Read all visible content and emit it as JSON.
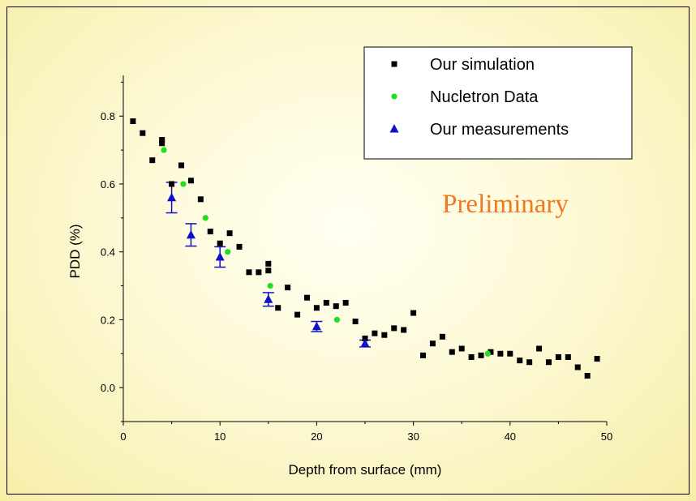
{
  "chart_data": {
    "type": "scatter",
    "title": "",
    "xlabel": "Depth from surface (mm)",
    "ylabel": "PDD (%)",
    "xlim": [
      0,
      50
    ],
    "ylim": [
      -0.1,
      0.92
    ],
    "x_ticks": [
      0,
      10,
      20,
      30,
      40,
      50
    ],
    "y_ticks": [
      0.0,
      0.2,
      0.4,
      0.6,
      0.8
    ],
    "x_tick_labels": [
      "0",
      "10",
      "20",
      "30",
      "40",
      "50"
    ],
    "y_tick_labels": [
      "0.0",
      "0.2",
      "0.4",
      "0.6",
      "0.8"
    ],
    "grid": false,
    "legend_position": "top-right",
    "annotation": {
      "text": "Preliminary",
      "color": "#f07820"
    },
    "series": [
      {
        "name": "Our simulation",
        "marker": "square",
        "color": "#000000",
        "x": [
          1,
          2,
          3,
          4,
          4,
          5,
          6,
          7,
          8,
          9,
          10,
          11,
          12,
          13,
          14,
          15,
          15,
          16,
          17,
          18,
          19,
          20,
          21,
          22,
          23,
          24,
          25,
          26,
          27,
          28,
          29,
          30,
          31,
          32,
          33,
          34,
          35,
          36,
          37,
          38,
          39,
          40,
          41,
          42,
          43,
          44,
          45,
          46,
          47,
          48,
          49
        ],
        "y": [
          0.785,
          0.75,
          0.67,
          0.73,
          0.72,
          0.6,
          0.655,
          0.61,
          0.555,
          0.46,
          0.425,
          0.455,
          0.415,
          0.34,
          0.34,
          0.345,
          0.365,
          0.235,
          0.295,
          0.215,
          0.265,
          0.235,
          0.25,
          0.24,
          0.25,
          0.195,
          0.145,
          0.16,
          0.155,
          0.175,
          0.17,
          0.22,
          0.095,
          0.13,
          0.15,
          0.105,
          0.115,
          0.09,
          0.095,
          0.105,
          0.1,
          0.1,
          0.08,
          0.075,
          0.115,
          0.075,
          0.09,
          0.09,
          0.06,
          0.035,
          0.085
        ]
      },
      {
        "name": "Nucletron Data",
        "marker": "circle",
        "color": "#22dd22",
        "x": [
          4.2,
          6.2,
          8.5,
          10.8,
          15.2,
          22.1,
          37.7
        ],
        "y": [
          0.7,
          0.6,
          0.5,
          0.4,
          0.3,
          0.2,
          0.1
        ]
      },
      {
        "name": "Our measurements",
        "marker": "triangle",
        "color": "#1010c8",
        "x": [
          5,
          7,
          10,
          15,
          20,
          25
        ],
        "y": [
          0.56,
          0.45,
          0.385,
          0.26,
          0.18,
          0.13
        ],
        "yerr": [
          0.045,
          0.033,
          0.03,
          0.02,
          0.015,
          0.01
        ]
      }
    ]
  }
}
